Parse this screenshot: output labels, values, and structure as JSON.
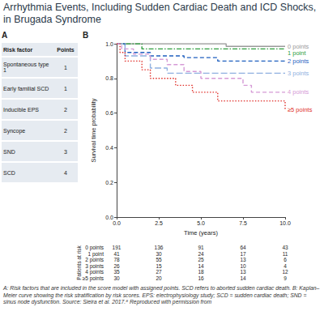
{
  "title": "Arrhythmia Events, Including Sudden Cardiac Death and ICD Shocks, in Brugada Syndrome",
  "panel_a": {
    "label": "A",
    "header": [
      "Risk factor",
      "Points"
    ],
    "rows": [
      [
        "Spontaneous type 1",
        1
      ],
      [
        "Early familial SCD",
        1
      ],
      [
        "Inducible EPS",
        2
      ],
      [
        "Syncope",
        2
      ],
      [
        "SND",
        3
      ],
      [
        "SCD",
        4
      ]
    ]
  },
  "chart_data": {
    "label": "B",
    "type": "step",
    "x_label": "Time (years)",
    "y_label": "Survival time probability",
    "xlim": [
      0,
      10
    ],
    "xticks": [
      {
        "value": 0,
        "label": "0.0"
      },
      {
        "value": 2.5,
        "label": "2.5"
      },
      {
        "value": 5,
        "label": "5.0"
      },
      {
        "value": 7.5,
        "label": "7.5"
      },
      {
        "value": 10,
        "label": "10.0"
      }
    ],
    "ylim": [
      0,
      1
    ],
    "yticks": [
      {
        "value": 0,
        "label": "0.0"
      },
      {
        "value": 0.2,
        "label": "0.2"
      },
      {
        "value": 0.4,
        "label": "0.4"
      },
      {
        "value": 0.6,
        "label": "0.6"
      },
      {
        "value": 0.8,
        "label": "0.8"
      },
      {
        "value": 1,
        "label": "1.0"
      }
    ],
    "grid": false,
    "series": [
      {
        "name": "0 points",
        "color": "#9a9a9a",
        "line_style": "solid",
        "x": [
          0,
          6.5,
          10
        ],
        "values": [
          1,
          0.985,
          0.985
        ]
      },
      {
        "name": "1 point",
        "color": "#2e9e3e",
        "line_style": "dashdot",
        "x": [
          0,
          1.5,
          10
        ],
        "values": [
          1,
          0.97,
          0.97
        ]
      },
      {
        "name": "2 points",
        "color": "#1f5fbf",
        "line_style": "dashed",
        "x": [
          0,
          0.5,
          2,
          4,
          6,
          10
        ],
        "values": [
          1,
          0.95,
          0.93,
          0.92,
          0.9,
          0.9
        ]
      },
      {
        "name": "3 points",
        "color": "#8fb0e0",
        "line_style": "longdash",
        "x": [
          0,
          0.5,
          2,
          3,
          10
        ],
        "values": [
          1,
          0.93,
          0.86,
          0.83,
          0.83
        ]
      },
      {
        "name": "4 points",
        "color": "#d59ad6",
        "line_style": "dashed",
        "x": [
          0,
          0.3,
          1,
          2,
          3,
          4,
          5,
          7.5,
          8,
          10
        ],
        "values": [
          1,
          0.97,
          0.94,
          0.91,
          0.88,
          0.84,
          0.8,
          0.76,
          0.72,
          0.72
        ]
      },
      {
        "name": "≥5 points",
        "color": "#e0302a",
        "line_style": "dotted",
        "x": [
          0,
          0.2,
          0.5,
          1.5,
          2,
          3.5,
          4.5,
          6,
          10
        ],
        "values": [
          1,
          0.95,
          0.9,
          0.85,
          0.8,
          0.76,
          0.72,
          0.67,
          0.62
        ]
      }
    ]
  },
  "risk_table": {
    "label": "Patients at risk",
    "times": [
      0,
      2.5,
      5,
      7.5,
      10
    ],
    "rows": [
      {
        "name": "0 points",
        "values": [
          191,
          136,
          91,
          64,
          43
        ]
      },
      {
        "name": "1 point",
        "values": [
          41,
          30,
          24,
          17,
          11
        ]
      },
      {
        "name": "2 points",
        "values": [
          78,
          55,
          25,
          13,
          6
        ]
      },
      {
        "name": "3 points",
        "values": [
          26,
          15,
          14,
          10,
          4
        ]
      },
      {
        "name": "4 points",
        "values": [
          35,
          27,
          18,
          13,
          12
        ]
      },
      {
        "name": "≥5 points",
        "values": [
          30,
          20,
          16,
          14,
          9
        ]
      }
    ]
  },
  "caption": "A: Risk factors that are included in the score model with assigned points. SCD refers to aborted sudden cardiac death. B: Kaplan–Meier curve showing the risk stratification by risk scores. EPS: electrophysiology study; SCD = sudden cardiac death; SND = sinus node dysfunction. Source: Sieira et al. 2017.⁸ Reproduced with permission from"
}
